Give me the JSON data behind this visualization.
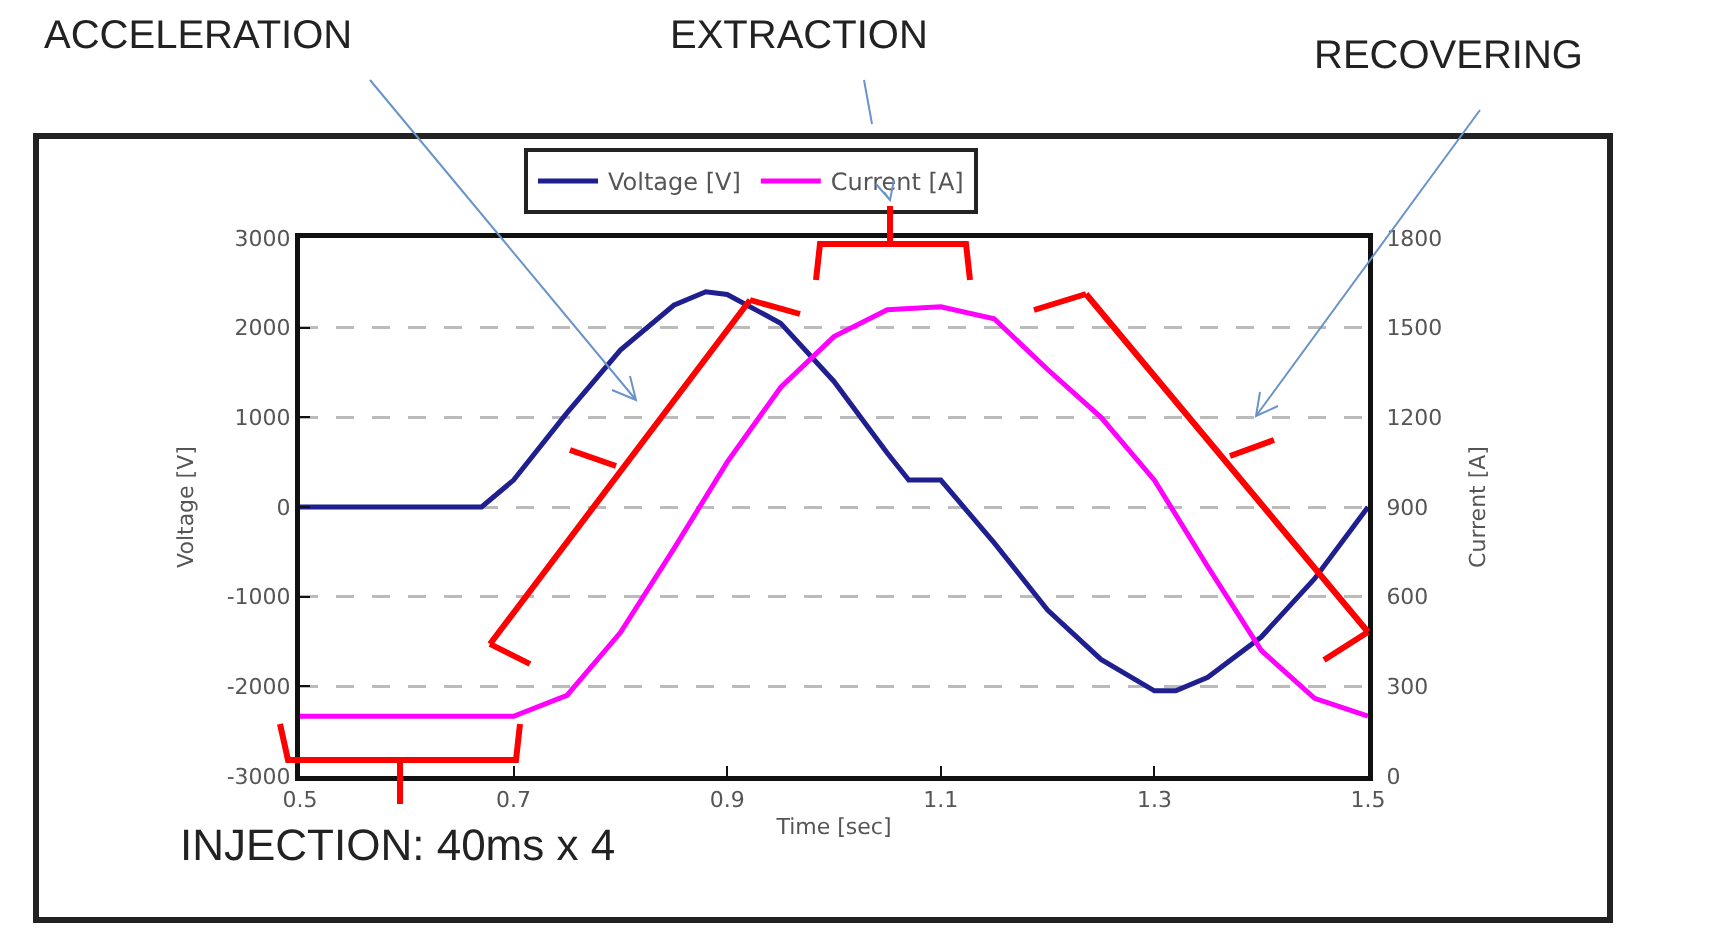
{
  "chart_data": {
    "type": "line",
    "xlabel": "Time [sec]",
    "ylabel": "Voltage [V]",
    "y2label": "Current [A]",
    "xlim": [
      0.5,
      1.5
    ],
    "xticks": [
      0.5,
      0.7,
      0.9,
      1.1,
      1.3,
      1.5
    ],
    "ylim": [
      -3000,
      3000
    ],
    "yticks": [
      -3000,
      -2000,
      -1000,
      0,
      1000,
      2000,
      3000
    ],
    "y2lim": [
      0,
      1800
    ],
    "y2ticks": [
      0,
      300,
      600,
      900,
      1200,
      1500,
      1800
    ],
    "grid": "y",
    "legend": "top",
    "marker": "none",
    "line_style": "solid",
    "series": [
      {
        "name": "Voltage [V]",
        "color": "#1f1f8f",
        "x": [
          0.5,
          0.67,
          0.7,
          0.75,
          0.8,
          0.85,
          0.88,
          0.9,
          0.95,
          1.0,
          1.05,
          1.07,
          1.1,
          1.15,
          1.2,
          1.25,
          1.3,
          1.32,
          1.35,
          1.4,
          1.45,
          1.5
        ],
        "values": [
          0,
          0,
          300,
          1050,
          1750,
          2250,
          2400,
          2370,
          2050,
          1400,
          600,
          300,
          300,
          -400,
          -1150,
          -1700,
          -2050,
          -2050,
          -1900,
          -1450,
          -800,
          0
        ]
      },
      {
        "name": "Current [A]",
        "color": "#ff00ff",
        "axis": "y2",
        "x": [
          0.5,
          0.7,
          0.75,
          0.8,
          0.85,
          0.9,
          0.95,
          1.0,
          1.05,
          1.1,
          1.15,
          1.2,
          1.25,
          1.3,
          1.35,
          1.4,
          1.45,
          1.5
        ],
        "values": [
          200,
          200,
          270,
          480,
          760,
          1050,
          1300,
          1470,
          1560,
          1570,
          1530,
          1360,
          1200,
          990,
          700,
          420,
          260,
          200
        ]
      }
    ],
    "annotations": [
      "ACCELERATION",
      "EXTRACTION",
      "RECOVERING",
      "INJECTION: 40ms x 4"
    ]
  }
}
